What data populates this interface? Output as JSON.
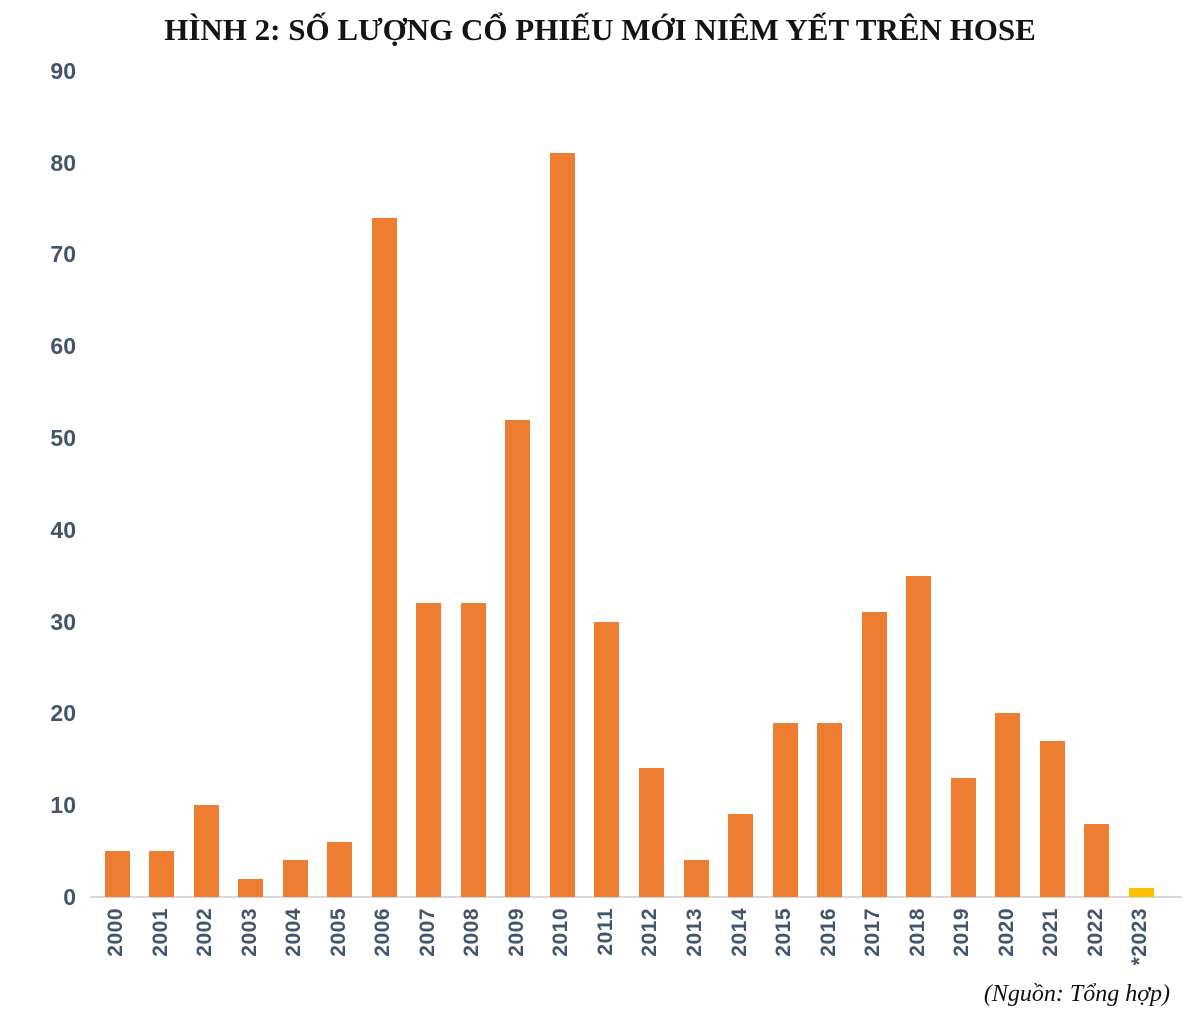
{
  "chart_data": {
    "type": "bar",
    "title": "HÌNH 2: SỐ LƯỢNG CỔ PHIẾU MỚI NIÊM YẾT TRÊN HOSE",
    "source_note": "(Nguồn: Tổng hợp)",
    "categories": [
      "2000",
      "2001",
      "2002",
      "2003",
      "2004",
      "2005",
      "2006",
      "2007",
      "2008",
      "2009",
      "2010",
      "2011",
      "2012",
      "2013",
      "2014",
      "2015",
      "2016",
      "2017",
      "2018",
      "2019",
      "2020",
      "2021",
      "2022",
      "*2023"
    ],
    "values": [
      5,
      5,
      10,
      2,
      4,
      6,
      74,
      32,
      32,
      52,
      81,
      30,
      14,
      4,
      9,
      19,
      19,
      31,
      35,
      13,
      20,
      17,
      8,
      1
    ],
    "bar_color": "#ED7D31",
    "highlight": {
      "category": "*2023",
      "color": "#FFC000"
    },
    "xlabel": "",
    "ylabel": "",
    "ylim": [
      0,
      90
    ],
    "yticks": [
      0,
      10,
      20,
      30,
      40,
      50,
      60,
      70,
      80,
      90
    ],
    "grid": false,
    "legend": "none",
    "x_tick_rotation_degrees": 90,
    "axis_text_color": "#44546A",
    "axis_line_color": "#D9D9D9",
    "title_color": "#141414"
  }
}
